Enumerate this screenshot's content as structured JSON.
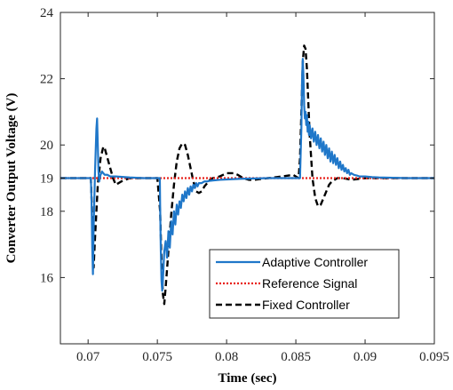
{
  "chart_data": {
    "type": "line",
    "title": "",
    "xlabel": "Time (sec)",
    "ylabel": "Converter Output Voltage (V)",
    "xlim": [
      0.068,
      0.095
    ],
    "ylim": [
      14,
      24
    ],
    "xticks": [
      0.07,
      0.075,
      0.08,
      0.085,
      0.09,
      0.095
    ],
    "xtick_labels": [
      "0.07",
      "0.075",
      "0.08",
      "0.085",
      "0.09",
      "0.095"
    ],
    "yticks": [
      16,
      18,
      19,
      20,
      22,
      24
    ],
    "ytick_labels": [
      "16",
      "18",
      "19",
      "20",
      "22",
      "24"
    ],
    "grid": false,
    "legend_position": "bottom-right",
    "series": [
      {
        "name": "Adaptive Controller",
        "color": "#1f77c9",
        "style": "solid",
        "x": [
          0.068,
          0.0702,
          0.07025,
          0.0703,
          0.07035,
          0.0704,
          0.0705,
          0.0706,
          0.07065,
          0.0707,
          0.07075,
          0.0708,
          0.0709,
          0.071,
          0.0711,
          0.0712,
          0.0714,
          0.0716,
          0.072,
          0.073,
          0.074,
          0.075,
          0.07518,
          0.0752,
          0.07525,
          0.0753,
          0.07535,
          0.0754,
          0.0755,
          0.0756,
          0.0757,
          0.0758,
          0.0759,
          0.076,
          0.0761,
          0.0762,
          0.0763,
          0.0764,
          0.0765,
          0.0766,
          0.0767,
          0.0768,
          0.0769,
          0.077,
          0.0771,
          0.0772,
          0.0773,
          0.0774,
          0.0775,
          0.0776,
          0.0777,
          0.0778,
          0.0779,
          0.078,
          0.0782,
          0.0784,
          0.0786,
          0.0788,
          0.079,
          0.0795,
          0.08,
          0.0805,
          0.081,
          0.082,
          0.083,
          0.084,
          0.085,
          0.0853,
          0.0854,
          0.08545,
          0.0855,
          0.08555,
          0.0856,
          0.08565,
          0.0857,
          0.08575,
          0.0858,
          0.08585,
          0.0859,
          0.08595,
          0.086,
          0.0861,
          0.0862,
          0.0863,
          0.0864,
          0.0865,
          0.0866,
          0.0867,
          0.0868,
          0.0869,
          0.087,
          0.0871,
          0.0872,
          0.0873,
          0.0874,
          0.0875,
          0.0876,
          0.0877,
          0.0878,
          0.0879,
          0.088,
          0.0881,
          0.0882,
          0.0883,
          0.0884,
          0.0885,
          0.0886,
          0.0887,
          0.0888,
          0.0889,
          0.089,
          0.0892,
          0.0894,
          0.0896,
          0.09,
          0.0905,
          0.091,
          0.092,
          0.093,
          0.095
        ],
        "y": [
          19.0,
          19.0,
          18.3,
          16.9,
          16.1,
          17.5,
          19.2,
          20.5,
          20.8,
          20.0,
          19.2,
          18.9,
          19.1,
          19.2,
          19.15,
          19.1,
          19.1,
          19.05,
          19.05,
          19.02,
          19.0,
          19.0,
          19.0,
          18.2,
          16.8,
          15.9,
          15.6,
          15.9,
          16.8,
          17.1,
          16.6,
          17.4,
          16.9,
          17.7,
          17.3,
          18.0,
          17.6,
          18.2,
          17.9,
          18.3,
          18.1,
          18.5,
          18.3,
          18.6,
          18.4,
          18.7,
          18.5,
          18.75,
          18.6,
          18.8,
          18.7,
          18.85,
          18.75,
          18.85,
          18.85,
          18.9,
          18.9,
          18.92,
          18.93,
          18.95,
          18.96,
          18.97,
          18.98,
          18.99,
          19.0,
          19.0,
          19.0,
          19.0,
          20.5,
          22.0,
          22.6,
          22.1,
          21.2,
          20.8,
          21.0,
          20.6,
          20.9,
          20.4,
          20.7,
          20.3,
          20.6,
          20.2,
          20.5,
          20.1,
          20.4,
          20.0,
          20.3,
          19.9,
          20.2,
          19.8,
          20.1,
          19.7,
          20.0,
          19.6,
          19.9,
          19.5,
          19.8,
          19.45,
          19.7,
          19.4,
          19.6,
          19.3,
          19.5,
          19.25,
          19.4,
          19.2,
          19.3,
          19.15,
          19.25,
          19.1,
          19.15,
          19.1,
          19.08,
          19.05,
          19.05,
          19.03,
          19.02,
          19.01,
          19.0,
          19.0
        ]
      },
      {
        "name": "Reference Signal",
        "color": "#e8211a",
        "style": "dotted",
        "x": [
          0.068,
          0.095
        ],
        "y": [
          19.0,
          19.0
        ]
      },
      {
        "name": "Fixed Controller",
        "color": "#000000",
        "style": "dashed",
        "x": [
          0.068,
          0.0702,
          0.0703,
          0.0704,
          0.0705,
          0.0707,
          0.0709,
          0.0711,
          0.0712,
          0.0714,
          0.0716,
          0.0718,
          0.072,
          0.0724,
          0.073,
          0.074,
          0.075,
          0.0752,
          0.0753,
          0.0754,
          0.0755,
          0.0756,
          0.0758,
          0.076,
          0.0762,
          0.0764,
          0.0766,
          0.0768,
          0.077,
          0.0772,
          0.0774,
          0.0776,
          0.0778,
          0.078,
          0.0782,
          0.0784,
          0.0786,
          0.0788,
          0.079,
          0.0795,
          0.08,
          0.0805,
          0.0808,
          0.0812,
          0.0816,
          0.082,
          0.083,
          0.084,
          0.0848,
          0.0852,
          0.0853,
          0.0854,
          0.0855,
          0.0856,
          0.0857,
          0.0858,
          0.0859,
          0.086,
          0.0862,
          0.0864,
          0.0866,
          0.0868,
          0.087,
          0.0872,
          0.0874,
          0.0876,
          0.0878,
          0.088,
          0.0884,
          0.089,
          0.09,
          0.091,
          0.092,
          0.093,
          0.095
        ],
        "y": [
          19.0,
          19.0,
          17.8,
          16.3,
          17.2,
          18.8,
          19.6,
          19.95,
          19.9,
          19.6,
          19.3,
          19.0,
          18.8,
          18.9,
          19.0,
          19.0,
          19.0,
          18.0,
          16.5,
          15.5,
          15.2,
          15.7,
          16.8,
          17.9,
          18.8,
          19.5,
          19.9,
          20.05,
          20.0,
          19.7,
          19.3,
          18.9,
          18.6,
          18.55,
          18.6,
          18.75,
          18.85,
          18.95,
          19.0,
          19.05,
          19.15,
          19.15,
          19.1,
          19.0,
          18.95,
          18.95,
          19.0,
          19.05,
          19.1,
          19.0,
          19.6,
          21.0,
          22.5,
          23.0,
          22.9,
          22.3,
          21.3,
          20.3,
          19.0,
          18.4,
          18.15,
          18.2,
          18.4,
          18.6,
          18.8,
          18.9,
          18.95,
          19.0,
          19.0,
          18.95,
          19.0,
          19.0,
          19.0,
          19.0,
          19.0
        ]
      }
    ]
  }
}
